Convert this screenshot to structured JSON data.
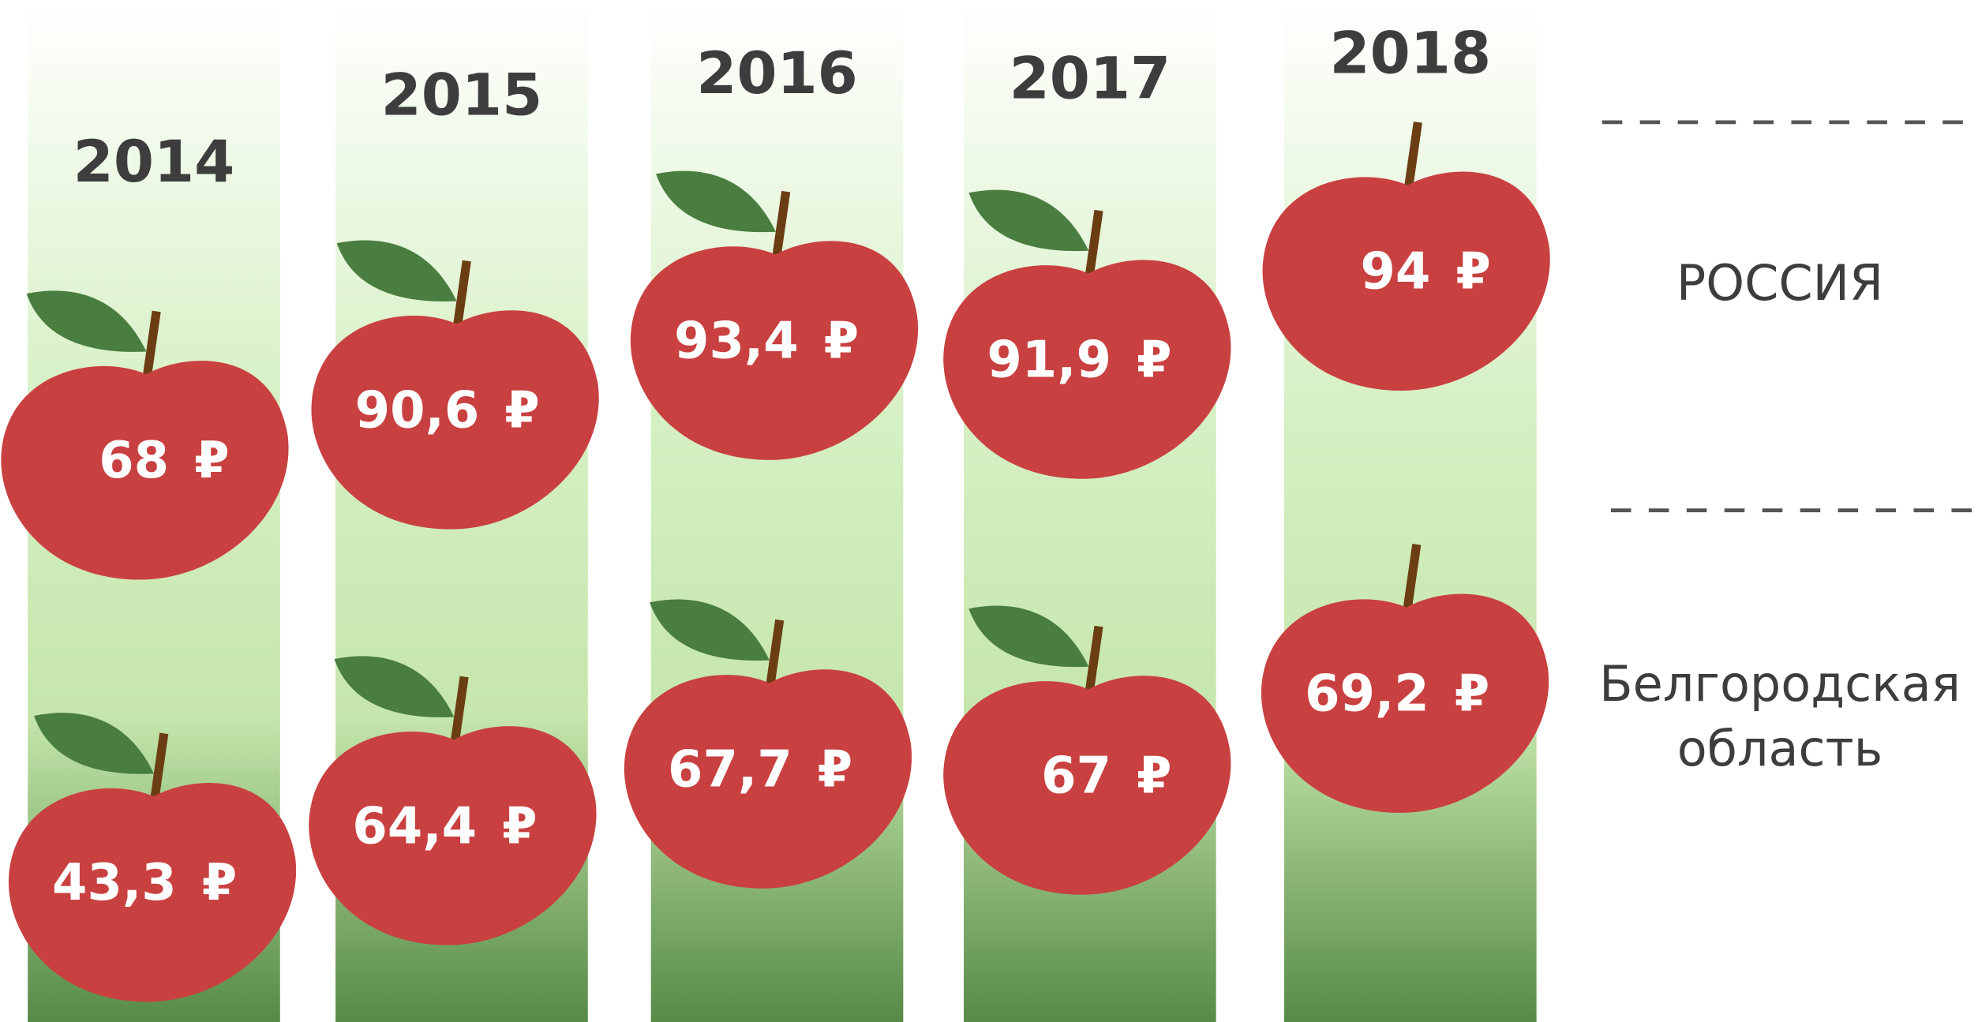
{
  "chart_data": {
    "type": "pictorial",
    "categories": [
      "2014",
      "2015",
      "2016",
      "2017",
      "2018"
    ],
    "unit": "₽",
    "series": [
      {
        "name": "РОССИЯ",
        "color": "#c94040",
        "values": [
          68,
          90.6,
          93.4,
          91.9,
          94
        ],
        "value_labels": [
          "68",
          "90,6",
          "93,4",
          "91,9",
          "94"
        ]
      },
      {
        "name": "Белгородская область",
        "color": "#c94040",
        "values": [
          43.3,
          64.4,
          67.7,
          67,
          69.2
        ],
        "value_labels": [
          "43,3",
          "64,4",
          "67,7",
          "67",
          "69,2"
        ]
      }
    ]
  }
}
